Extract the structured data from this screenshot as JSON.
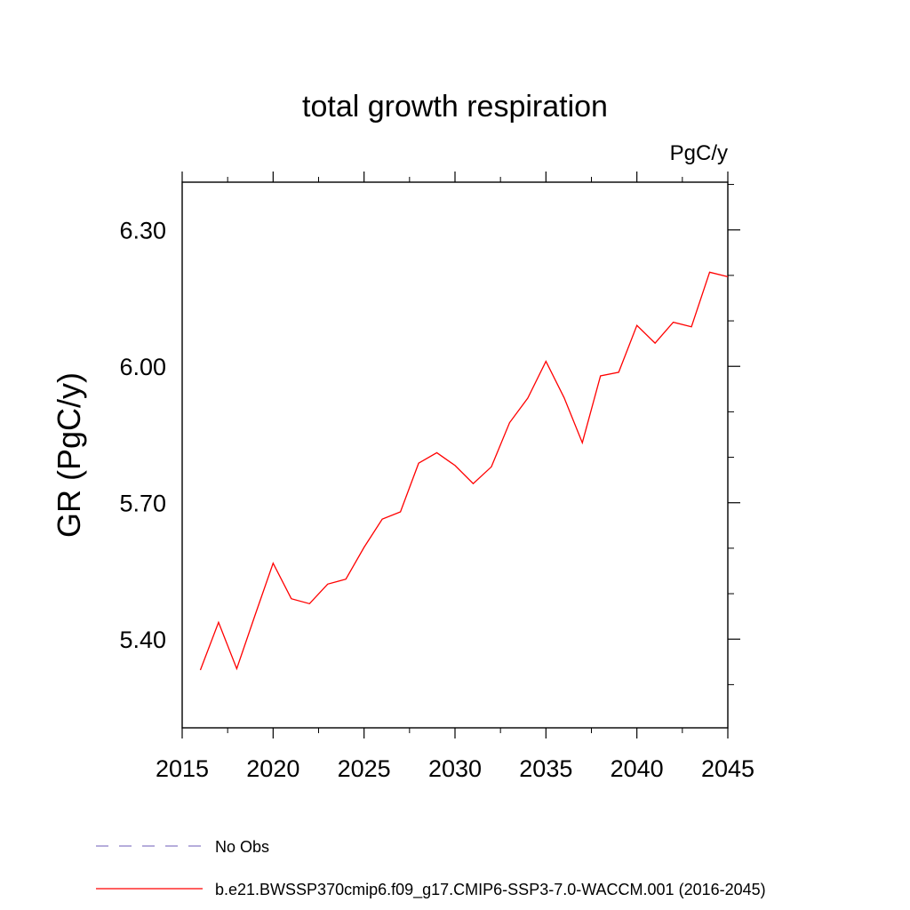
{
  "chart_data": {
    "type": "line",
    "title": "total growth respiration",
    "units": "PgC/y",
    "ylabel": "GR  (PgC/y)",
    "xlabel": "",
    "xlim": [
      2015,
      2045
    ],
    "ylim": [
      5.205,
      6.405
    ],
    "x_ticks": [
      "2015",
      "2020",
      "2025",
      "2030",
      "2035",
      "2040",
      "2045"
    ],
    "y_ticks": [
      "5.40",
      "5.70",
      "6.00",
      "6.30"
    ],
    "grid": false,
    "legend_position": "bottom",
    "series": [
      {
        "name": "No Obs",
        "style": "dashed",
        "color": "#8a7cc8",
        "x": [],
        "y": []
      },
      {
        "name": "b.e21.BWSSP370cmip6.f09_g17.CMIP6-SSP3-7.0-WACCM.001 (2016-2045)",
        "style": "solid",
        "color": "#ff0000",
        "x": [
          2016,
          2017,
          2018,
          2019,
          2020,
          2021,
          2022,
          2023,
          2024,
          2025,
          2026,
          2027,
          2028,
          2029,
          2030,
          2031,
          2032,
          2033,
          2034,
          2035,
          2036,
          2037,
          2038,
          2039,
          2040,
          2041,
          2042,
          2043,
          2044,
          2045
        ],
        "y": [
          5.332,
          5.437,
          5.335,
          5.452,
          5.567,
          5.489,
          5.478,
          5.521,
          5.532,
          5.602,
          5.664,
          5.68,
          5.787,
          5.81,
          5.782,
          5.742,
          5.779,
          5.876,
          5.93,
          6.011,
          5.931,
          5.832,
          5.979,
          5.987,
          6.09,
          6.051,
          6.097,
          6.087,
          6.207,
          6.197
        ]
      }
    ]
  }
}
